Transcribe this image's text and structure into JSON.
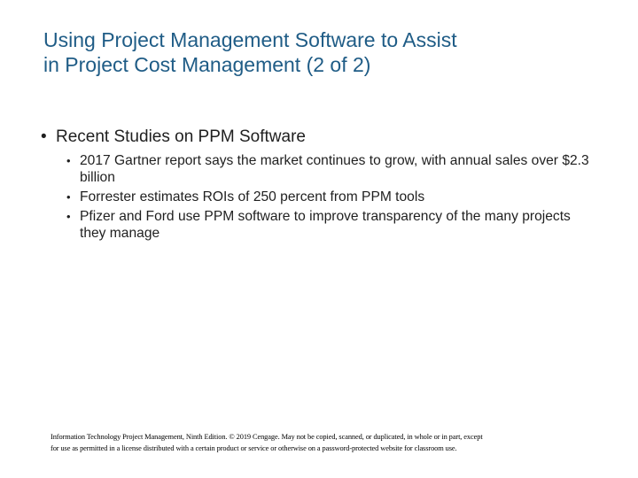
{
  "slide": {
    "title_lines": [
      "Using Project Management Software to Assist",
      "in Project Cost Management (2 of 2)"
    ],
    "bullet_glyph": "•",
    "main_point": "Recent Studies on PPM Software",
    "sub_points": [
      "2017 Gartner report says the market continues to grow, with annual sales over $2.3 billion",
      "Forrester estimates ROIs of 250 percent from PPM tools",
      "Pfizer and Ford use PPM software to improve transparency of the many projects they manage"
    ],
    "footer_lines": [
      "Information Technology Project Management, Ninth Edition. © 2019 Cengage. May not be copied, scanned, or duplicated, in whole or in part, except",
      "for use as permitted in a license distributed with a certain product or service or otherwise on a password-protected website for classroom use."
    ]
  },
  "colors": {
    "title": "#1f5c86",
    "body_text": "#1f1f1f",
    "background": "#ffffff"
  }
}
